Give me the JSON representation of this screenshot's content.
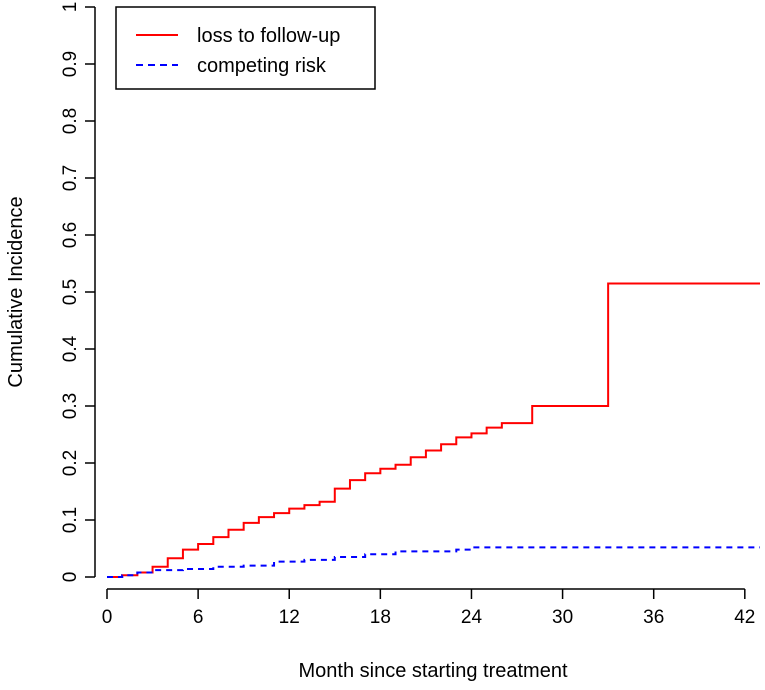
{
  "chart_data": {
    "type": "line",
    "title": "",
    "xlabel": "Month since starting treatment",
    "ylabel": "Cumulative Incidence",
    "xlim": [
      0,
      43
    ],
    "ylim": [
      0,
      1
    ],
    "xticks": [
      0,
      6,
      12,
      18,
      24,
      30,
      36,
      42
    ],
    "yticks": [
      0,
      0.1,
      0.2,
      0.3,
      0.4,
      0.5,
      0.6,
      0.7,
      0.8,
      0.9,
      1
    ],
    "ytick_labels": [
      "0",
      "0.1",
      "0.2",
      "0.3",
      "0.4",
      "0.5",
      "0.6",
      "0.7",
      "0.8",
      "0.9",
      "1"
    ],
    "legend": {
      "position": "top-left",
      "entries": [
        "loss to follow-up",
        "competing risk"
      ]
    },
    "series": [
      {
        "name": "loss to follow-up",
        "color": "#ff0000",
        "style": "solid",
        "step": true,
        "points": [
          [
            0,
            0
          ],
          [
            1,
            0.003
          ],
          [
            2,
            0.008
          ],
          [
            3,
            0.018
          ],
          [
            4,
            0.033
          ],
          [
            5,
            0.048
          ],
          [
            6,
            0.058
          ],
          [
            7,
            0.07
          ],
          [
            8,
            0.083
          ],
          [
            9,
            0.095
          ],
          [
            10,
            0.105
          ],
          [
            11,
            0.112
          ],
          [
            12,
            0.12
          ],
          [
            13,
            0.126
          ],
          [
            14,
            0.132
          ],
          [
            15,
            0.155
          ],
          [
            16,
            0.17
          ],
          [
            17,
            0.182
          ],
          [
            18,
            0.19
          ],
          [
            19,
            0.197
          ],
          [
            20,
            0.21
          ],
          [
            21,
            0.222
          ],
          [
            22,
            0.233
          ],
          [
            23,
            0.245
          ],
          [
            24,
            0.252
          ],
          [
            25,
            0.262
          ],
          [
            26,
            0.27
          ],
          [
            28,
            0.3
          ],
          [
            33,
            0.515
          ],
          [
            43,
            0.515
          ]
        ]
      },
      {
        "name": "competing risk",
        "color": "#0000ff",
        "style": "dashed",
        "step": true,
        "points": [
          [
            0,
            0
          ],
          [
            1,
            0.003
          ],
          [
            2,
            0.008
          ],
          [
            3,
            0.012
          ],
          [
            5,
            0.014
          ],
          [
            7,
            0.018
          ],
          [
            9,
            0.02
          ],
          [
            11,
            0.027
          ],
          [
            13,
            0.03
          ],
          [
            15,
            0.035
          ],
          [
            17,
            0.04
          ],
          [
            19,
            0.045
          ],
          [
            23,
            0.048
          ],
          [
            24,
            0.052
          ],
          [
            43,
            0.052
          ]
        ]
      }
    ]
  }
}
